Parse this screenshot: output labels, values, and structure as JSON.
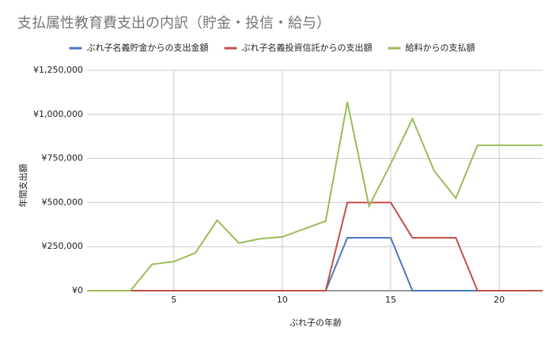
{
  "chart_data": {
    "type": "line",
    "title": "支払属性教育費支出の内訳（貯金・投信・給与）",
    "x_label": "ぶれ子の年齢",
    "y_label": "年間支出額",
    "x": [
      1,
      2,
      3,
      4,
      5,
      6,
      7,
      8,
      9,
      10,
      11,
      12,
      13,
      14,
      15,
      16,
      17,
      18,
      19,
      20,
      21,
      22
    ],
    "series": [
      {
        "name": "ぶれ子名義貯金からの支出金額",
        "color": "#4a78c0",
        "values": [
          0,
          0,
          0,
          0,
          0,
          0,
          0,
          0,
          0,
          0,
          0,
          0,
          300000,
          300000,
          300000,
          0,
          0,
          0,
          0,
          0,
          0,
          0
        ]
      },
      {
        "name": "ぶれ子名義投資信託からの支出額",
        "color": "#c0504d",
        "values": [
          0,
          0,
          0,
          0,
          0,
          0,
          0,
          0,
          0,
          0,
          0,
          0,
          500000,
          500000,
          500000,
          300000,
          300000,
          300000,
          0,
          0,
          0,
          0
        ]
      },
      {
        "name": "給料からの支払額",
        "color": "#9bbb59",
        "values": [
          0,
          0,
          0,
          150000,
          165000,
          215000,
          400000,
          270000,
          295000,
          305000,
          350000,
          395000,
          1070000,
          480000,
          720000,
          975000,
          680000,
          525000,
          825000,
          825000,
          825000,
          825000
        ]
      }
    ],
    "xlim": [
      1,
      22
    ],
    "xticks": [
      5,
      10,
      15,
      20
    ],
    "ylim": [
      0,
      1250000
    ],
    "yticks": [
      {
        "value": 0,
        "label": "¥0"
      },
      {
        "value": 250000,
        "label": "¥250,000"
      },
      {
        "value": 500000,
        "label": "¥500,000"
      },
      {
        "value": 750000,
        "label": "¥750,000"
      },
      {
        "value": 1000000,
        "label": "¥1,000,000"
      },
      {
        "value": 1250000,
        "label": "¥1,250,000"
      }
    ],
    "grid": true,
    "legend": "top"
  }
}
